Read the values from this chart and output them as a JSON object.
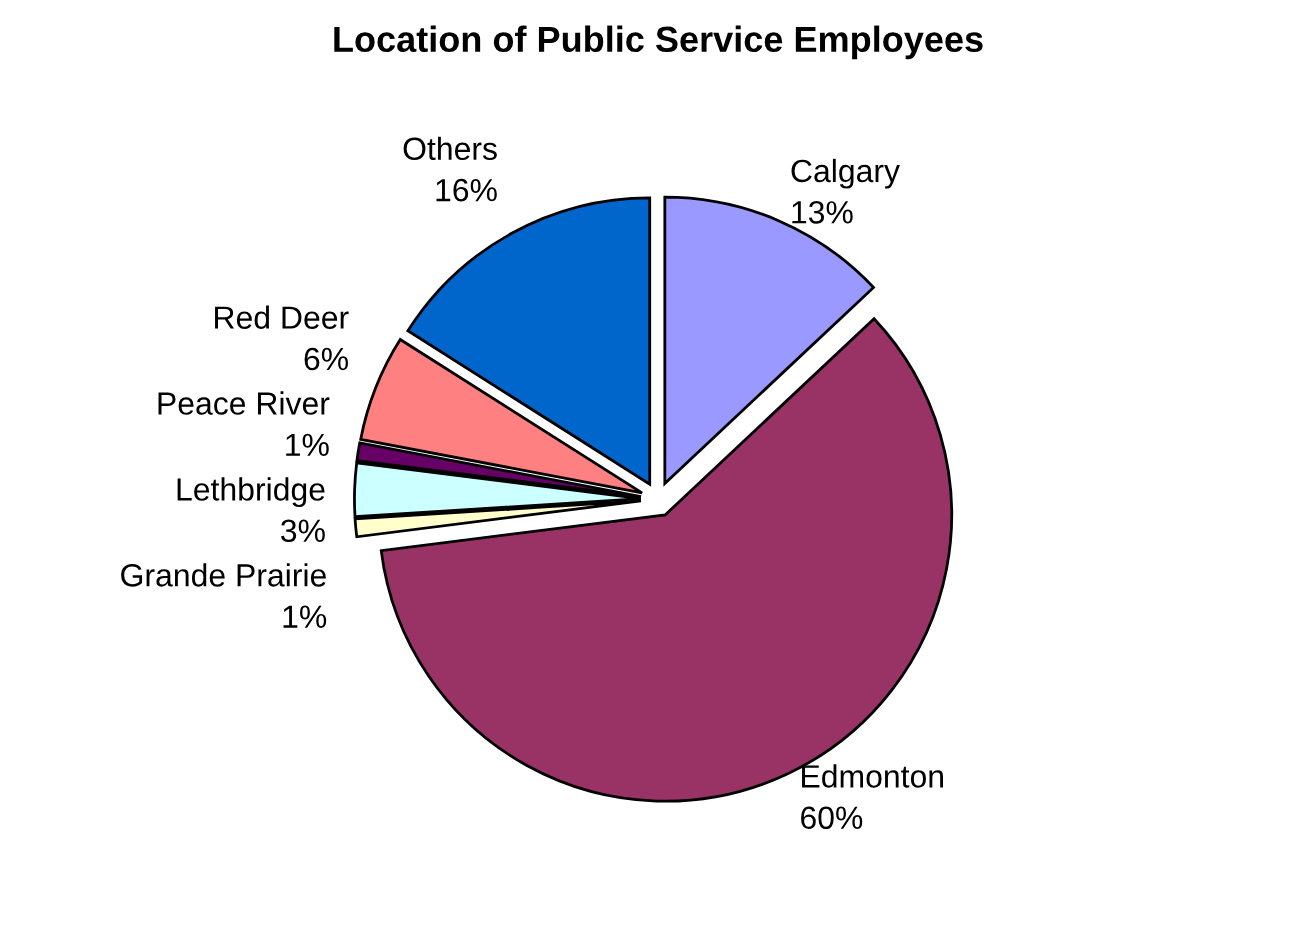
{
  "chart_data": {
    "type": "pie",
    "title": "Location of Public Service Employees",
    "categories": [
      "Calgary",
      "Edmonton",
      "Grande Prairie",
      "Lethbridge",
      "Peace River",
      "Red Deer",
      "Others"
    ],
    "values": [
      13,
      60,
      1,
      3,
      1,
      6,
      16
    ],
    "value_labels": [
      "13%",
      "60%",
      "1%",
      "3%",
      "1%",
      "6%",
      "16%"
    ],
    "colors": [
      "#9999ff",
      "#993366",
      "#ffffcc",
      "#ccffff",
      "#660066",
      "#ff8080",
      "#0066cc"
    ],
    "legend": false
  }
}
